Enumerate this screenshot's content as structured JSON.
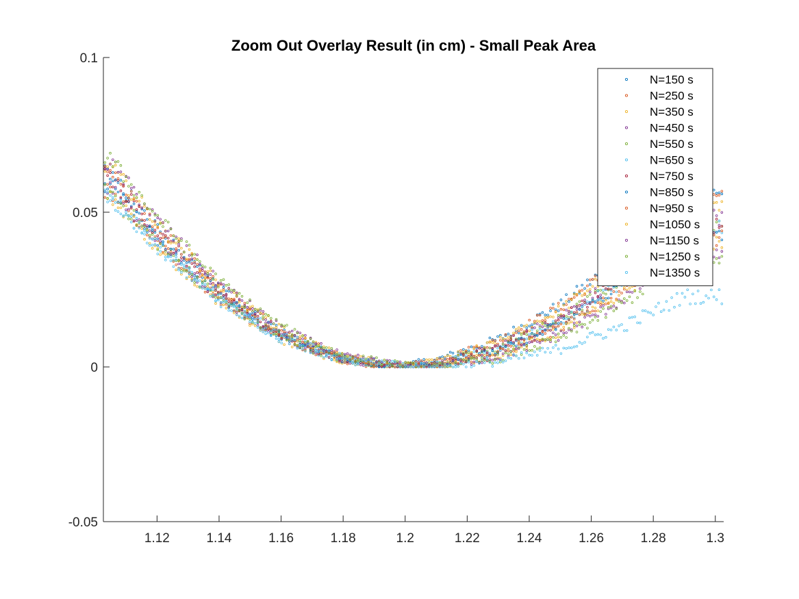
{
  "chart_data": {
    "type": "scatter",
    "title": "Zoom Out Overlay Result (in cm) - Small Peak Area",
    "xlabel": "",
    "ylabel": "",
    "xlim": [
      1.1027,
      1.3027
    ],
    "ylim": [
      -0.05,
      0.1
    ],
    "x_ticks": [
      1.12,
      1.14,
      1.16,
      1.18,
      1.2,
      1.22,
      1.24,
      1.26,
      1.28,
      1.3
    ],
    "x_tick_labels": [
      "1.12",
      "1.14",
      "1.16",
      "1.18",
      "1.2",
      "1.22",
      "1.24",
      "1.26",
      "1.28",
      "1.3"
    ],
    "y_ticks": [
      -0.05,
      0,
      0.05,
      0.1
    ],
    "y_tick_labels": [
      "-0.05",
      "0",
      "0.05",
      "0.1"
    ],
    "grid": false,
    "marker": "circle-open",
    "legend_position": "top-right",
    "series": [
      {
        "name": "N=150 s",
        "color": "#0072BD",
        "x_min": 1.195,
        "x": [
          1.105,
          1.12,
          1.14,
          1.16,
          1.18,
          1.195,
          1.21,
          1.23,
          1.25,
          1.27,
          1.29
        ],
        "y": [
          0.0585,
          0.0412,
          0.0226,
          0.0098,
          0.0022,
          0.0,
          0.0022,
          0.0089,
          0.02,
          0.0356,
          0.0556
        ]
      },
      {
        "name": "N=250 s",
        "color": "#D95319",
        "x_min": 1.196,
        "x": [
          1.105,
          1.12,
          1.14,
          1.16,
          1.18,
          1.196,
          1.21,
          1.23,
          1.25,
          1.27,
          1.29
        ],
        "y": [
          0.0569,
          0.0401,
          0.0219,
          0.0093,
          0.002,
          0.0,
          0.0019,
          0.0083,
          0.0192,
          0.0346,
          0.0544
        ]
      },
      {
        "name": "N=350 s",
        "color": "#EDB120",
        "x_min": 1.197,
        "x": [
          1.105,
          1.12,
          1.14,
          1.16,
          1.18,
          1.197,
          1.21,
          1.23,
          1.25,
          1.27,
          1.29
        ],
        "y": [
          0.0553,
          0.039,
          0.0212,
          0.0088,
          0.0018,
          0.0,
          0.0016,
          0.0078,
          0.0184,
          0.0336,
          0.0532
        ]
      },
      {
        "name": "N=450 s",
        "color": "#7E2F8E",
        "x_min": 1.198,
        "x": [
          1.105,
          1.12,
          1.14,
          1.16,
          1.18,
          1.198,
          1.21,
          1.23,
          1.25,
          1.27,
          1.29
        ],
        "y": [
          0.0581,
          0.0412,
          0.0228,
          0.0099,
          0.0024,
          0.0,
          0.0011,
          0.0064,
          0.0161,
          0.03,
          0.0482
        ]
      },
      {
        "name": "N=550 s",
        "color": "#77AC30",
        "x_min": 1.199,
        "x": [
          1.105,
          1.12,
          1.14,
          1.16,
          1.18,
          1.199,
          1.21,
          1.23,
          1.25,
          1.27,
          1.29
        ],
        "y": [
          0.0566,
          0.0401,
          0.0222,
          0.0096,
          0.0023,
          0.0,
          0.001,
          0.006,
          0.0153,
          0.0288,
          0.0466
        ]
      },
      {
        "name": "N=650 s",
        "color": "#4DBEEE",
        "x_min": 1.2,
        "x": [
          1.105,
          1.12,
          1.14,
          1.16,
          1.18,
          1.2,
          1.21,
          1.23,
          1.25,
          1.27,
          1.29
        ],
        "y": [
          0.055,
          0.039,
          0.0216,
          0.0093,
          0.0022,
          0.0,
          0.0008,
          0.0056,
          0.0146,
          0.0276,
          0.045
        ]
      },
      {
        "name": "N=750 s",
        "color": "#A2142F",
        "x_min": 1.2,
        "x": [
          1.105,
          1.12,
          1.14,
          1.16,
          1.18,
          1.2,
          1.21,
          1.23,
          1.25,
          1.27,
          1.29
        ],
        "y": [
          0.0615,
          0.0437,
          0.0243,
          0.0105,
          0.0024,
          0.0,
          0.0009,
          0.0058,
          0.0149,
          0.0283,
          0.0458
        ]
      },
      {
        "name": "N=850 s",
        "color": "#0072BD",
        "x_min": 1.201,
        "x": [
          1.105,
          1.12,
          1.14,
          1.16,
          1.18,
          1.201,
          1.21,
          1.23,
          1.25,
          1.27,
          1.29
        ],
        "y": [
          0.0626,
          0.0446,
          0.0249,
          0.0109,
          0.0026,
          0.0,
          0.0006,
          0.005,
          0.0137,
          0.0266,
          0.0437
        ]
      },
      {
        "name": "N=950 s",
        "color": "#D95319",
        "x_min": 1.202,
        "x": [
          1.105,
          1.12,
          1.14,
          1.16,
          1.18,
          1.202,
          1.21,
          1.23,
          1.25,
          1.27,
          1.29
        ],
        "y": [
          0.0637,
          0.0455,
          0.0255,
          0.0113,
          0.0028,
          0.0,
          0.0004,
          0.0043,
          0.0125,
          0.025,
          0.0416
        ]
      },
      {
        "name": "N=1050 s",
        "color": "#EDB120",
        "x_min": 1.203,
        "x": [
          1.105,
          1.12,
          1.14,
          1.16,
          1.18,
          1.203,
          1.21,
          1.23,
          1.25,
          1.27,
          1.29
        ],
        "y": [
          0.0648,
          0.0465,
          0.0262,
          0.0118,
          0.0031,
          0.0,
          0.0003,
          0.0037,
          0.0114,
          0.0233,
          0.0395
        ]
      },
      {
        "name": "N=1150 s",
        "color": "#7E2F8E",
        "x_min": 1.204,
        "x": [
          1.105,
          1.12,
          1.14,
          1.16,
          1.18,
          1.204,
          1.21,
          1.23,
          1.25,
          1.27,
          1.29
        ],
        "y": [
          0.0659,
          0.0474,
          0.0269,
          0.0122,
          0.0033,
          0.0,
          0.0002,
          0.0032,
          0.0104,
          0.0218,
          0.0374
        ]
      },
      {
        "name": "N=1250 s",
        "color": "#77AC30",
        "x_min": 1.205,
        "x": [
          1.105,
          1.12,
          1.14,
          1.16,
          1.18,
          1.205,
          1.21,
          1.23,
          1.25,
          1.27,
          1.29
        ],
        "y": [
          0.067,
          0.0484,
          0.0275,
          0.0127,
          0.0035,
          0.0,
          0.0001,
          0.0027,
          0.0093,
          0.0203,
          0.0353
        ]
      },
      {
        "name": "N=1350 s",
        "color": "#4DBEEE",
        "x_min": 1.206,
        "x": [
          1.105,
          1.12,
          1.14,
          1.16,
          1.18,
          1.206,
          1.21,
          1.23,
          1.25,
          1.27,
          1.29
        ],
        "y": [
          0.0549,
          0.0393,
          0.0222,
          0.0099,
          0.0026,
          0.0,
          0.0,
          0.0016,
          0.0059,
          0.013,
          0.0228
        ]
      }
    ]
  }
}
